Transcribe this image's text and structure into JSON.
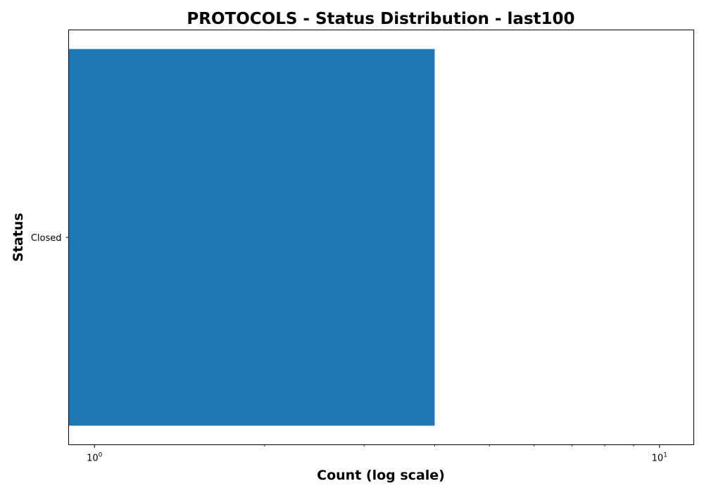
{
  "chart_data": {
    "type": "bar",
    "orientation": "horizontal",
    "title": "PROTOCOLS - Status Distribution - last100",
    "xlabel": "Count (log scale)",
    "ylabel": "Status",
    "xscale": "log",
    "xlim": [
      0.9,
      11.5
    ],
    "categories": [
      "Closed"
    ],
    "values": [
      4
    ],
    "bar_color": "#1f77b4",
    "x_major_ticks": [
      {
        "value": 1,
        "base": "10",
        "exp": "0"
      },
      {
        "value": 10,
        "base": "10",
        "exp": "1"
      }
    ],
    "x_minor_ticks": [
      2,
      3,
      4,
      5,
      6,
      7,
      8,
      9
    ],
    "grid": false,
    "legend": "none"
  }
}
